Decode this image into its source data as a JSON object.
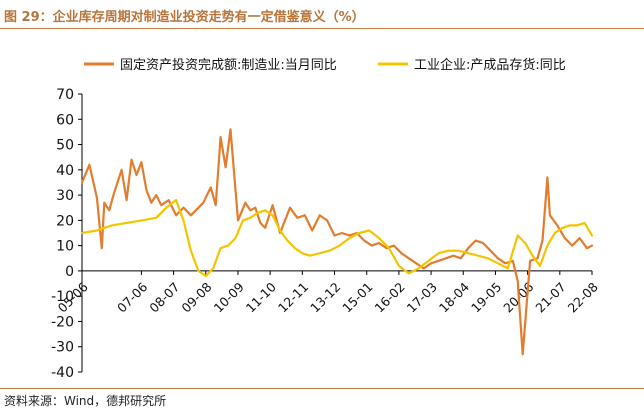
{
  "header": {
    "title": "图 29：企业库存周期对制造业投资走势有一定借鉴意义（%）"
  },
  "footer": {
    "source": "资料来源：Wind，德邦研究所"
  },
  "colors": {
    "series1": "#e47c2e",
    "series2": "#f5c400",
    "axis": "#000000",
    "title": "#b8743a"
  },
  "chart_data": {
    "type": "line",
    "title": "",
    "xlabel": "",
    "ylabel": "",
    "ylim": [
      -40,
      70
    ],
    "yticks": [
      -40,
      -30,
      -20,
      -10,
      0,
      10,
      20,
      30,
      40,
      50,
      60,
      70
    ],
    "xlim": [
      "2005-06",
      "2022-08"
    ],
    "xticks": [
      "05-06",
      "07-06",
      "08-07",
      "09-08",
      "10-09",
      "11-10",
      "12-11",
      "13-12",
      "15-01",
      "16-02",
      "17-03",
      "18-04",
      "19-05",
      "20-06",
      "21-07",
      "22-08"
    ],
    "grid": false,
    "legend": "top",
    "series": [
      {
        "name": "固定资产投资完成额:制造业:当月同比",
        "x": [
          "2005-06",
          "2005-09",
          "2005-12",
          "2006-02",
          "2006-03",
          "2006-05",
          "2006-07",
          "2006-10",
          "2006-12",
          "2007-02",
          "2007-04",
          "2007-06",
          "2007-08",
          "2007-10",
          "2007-12",
          "2008-02",
          "2008-05",
          "2008-08",
          "2008-11",
          "2009-02",
          "2009-04",
          "2009-07",
          "2009-10",
          "2009-12",
          "2010-02",
          "2010-04",
          "2010-06",
          "2010-09",
          "2010-12",
          "2011-02",
          "2011-04",
          "2011-06",
          "2011-08",
          "2011-11",
          "2012-02",
          "2012-06",
          "2012-09",
          "2012-12",
          "2013-03",
          "2013-06",
          "2013-09",
          "2013-12",
          "2014-03",
          "2014-06",
          "2014-09",
          "2014-12",
          "2015-03",
          "2015-06",
          "2015-09",
          "2015-12",
          "2016-03",
          "2016-06",
          "2016-09",
          "2016-12",
          "2017-03",
          "2017-06",
          "2017-09",
          "2017-12",
          "2018-03",
          "2018-06",
          "2018-09",
          "2018-12",
          "2019-03",
          "2019-06",
          "2019-09",
          "2019-12",
          "2020-02",
          "2020-04",
          "2020-07",
          "2020-10",
          "2020-12",
          "2021-02",
          "2021-03",
          "2021-06",
          "2021-09",
          "2021-12",
          "2022-03",
          "2022-06",
          "2022-08"
        ],
        "values": [
          35,
          42,
          29,
          9,
          27,
          24,
          31,
          40,
          28,
          44,
          38,
          43,
          32,
          27,
          30,
          26,
          28,
          22,
          25,
          22,
          24,
          27,
          33,
          26,
          53,
          41,
          56,
          20,
          27,
          24,
          25,
          19,
          17,
          26,
          15,
          25,
          21,
          22,
          16,
          22,
          20,
          14,
          15,
          14,
          15,
          12,
          10,
          11,
          9,
          10,
          7,
          5,
          3,
          1,
          3,
          4,
          5,
          6,
          5,
          9,
          12,
          11,
          8,
          5,
          3,
          4,
          -4,
          -33,
          4,
          5,
          12,
          37,
          22,
          18,
          13,
          10,
          13,
          9,
          10
        ]
      },
      {
        "name": "工业企业:产成品存货:同比",
        "x": [
          "2005-06",
          "2005-12",
          "2006-06",
          "2006-12",
          "2007-06",
          "2007-12",
          "2008-04",
          "2008-08",
          "2008-11",
          "2009-02",
          "2009-05",
          "2009-08",
          "2009-11",
          "2010-02",
          "2010-05",
          "2010-08",
          "2010-11",
          "2011-02",
          "2011-05",
          "2011-08",
          "2011-11",
          "2012-02",
          "2012-05",
          "2012-08",
          "2012-11",
          "2013-02",
          "2013-06",
          "2013-10",
          "2014-02",
          "2014-06",
          "2014-10",
          "2015-02",
          "2015-06",
          "2015-10",
          "2016-02",
          "2016-06",
          "2016-10",
          "2017-02",
          "2017-06",
          "2017-10",
          "2018-02",
          "2018-06",
          "2018-10",
          "2019-02",
          "2019-06",
          "2019-10",
          "2020-02",
          "2020-05",
          "2020-08",
          "2020-11",
          "2021-02",
          "2021-05",
          "2021-08",
          "2021-11",
          "2022-02",
          "2022-05",
          "2022-08"
        ],
        "values": [
          15,
          16,
          18,
          19,
          20,
          21,
          25,
          28,
          20,
          8,
          0,
          -2,
          1,
          9,
          10,
          13,
          20,
          21,
          23,
          24,
          22,
          16,
          12,
          9,
          7,
          6,
          7,
          8,
          10,
          13,
          15,
          16,
          13,
          9,
          2,
          -1,
          1,
          4,
          7,
          8,
          8,
          7,
          6,
          5,
          3,
          1,
          14,
          11,
          6,
          2,
          10,
          15,
          17,
          18,
          18,
          19,
          14
        ]
      }
    ]
  }
}
